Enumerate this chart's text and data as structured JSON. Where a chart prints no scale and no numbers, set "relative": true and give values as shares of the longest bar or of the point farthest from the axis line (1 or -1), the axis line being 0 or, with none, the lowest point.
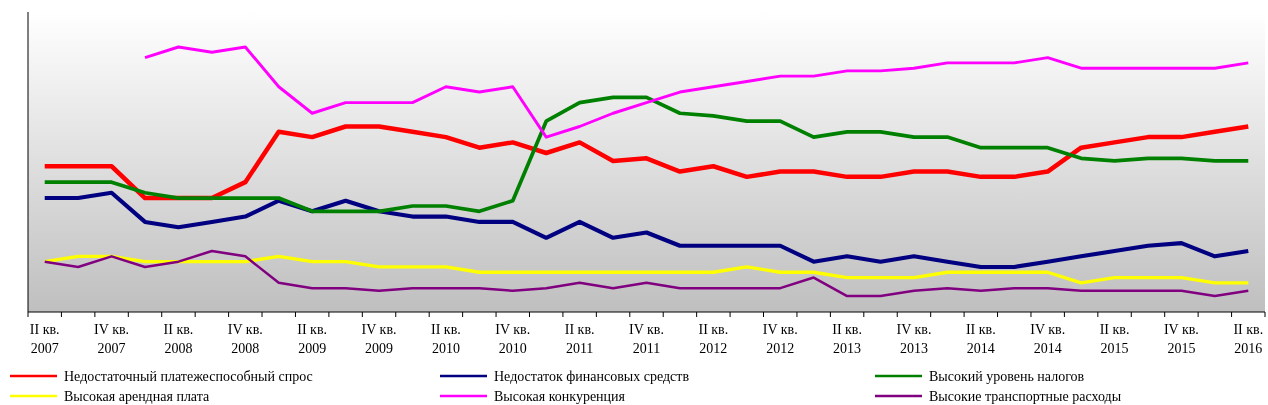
{
  "chart_data": {
    "type": "line",
    "relative": true,
    "legend": "bottom",
    "line_style": "solid",
    "marker": "none",
    "categories": [
      "II кв.\n2007",
      null,
      "IV кв.\n2007",
      null,
      "II кв.\n2008",
      null,
      "IV кв.\n2008",
      null,
      "II кв.\n2009",
      null,
      "IV кв.\n2009",
      null,
      "II кв.\n2010",
      null,
      "IV кв.\n2010",
      null,
      "II кв.\n2011",
      null,
      "IV кв.\n2011",
      null,
      "II кв.\n2012",
      null,
      "IV кв.\n2012",
      null,
      "II кв.\n2013",
      null,
      "IV кв.\n2013",
      null,
      "II кв.\n2014",
      null,
      "IV кв.\n2014",
      null,
      "II кв.\n2015",
      null,
      "IV кв.\n2015",
      null,
      "II кв.\n2016"
    ],
    "series": [
      {
        "name": "Недостаточный платежеспособный спрос",
        "color": "#ff0000",
        "values": [
          0.55,
          0.55,
          0.55,
          0.43,
          0.43,
          0.43,
          0.49,
          0.68,
          0.66,
          0.7,
          0.7,
          0.68,
          0.66,
          0.62,
          0.64,
          0.6,
          0.64,
          0.57,
          0.58,
          0.53,
          0.55,
          0.51,
          0.53,
          0.53,
          0.51,
          0.51,
          0.53,
          0.53,
          0.51,
          0.51,
          0.53,
          0.62,
          0.64,
          0.66,
          0.66,
          0.68,
          0.7
        ]
      },
      {
        "name": "Недостаток финансовых средств",
        "color": "#000080",
        "values": [
          0.43,
          0.43,
          0.45,
          0.34,
          0.32,
          0.34,
          0.36,
          0.42,
          0.38,
          0.42,
          0.38,
          0.36,
          0.36,
          0.34,
          0.34,
          0.28,
          0.34,
          0.28,
          0.3,
          0.25,
          0.25,
          0.25,
          0.25,
          0.19,
          0.21,
          0.19,
          0.21,
          0.19,
          0.17,
          0.17,
          0.19,
          0.21,
          0.23,
          0.25,
          0.26,
          0.21,
          0.23
        ]
      },
      {
        "name": "Высокий уровень налогов",
        "color": "#008000",
        "values": [
          0.49,
          0.49,
          0.49,
          0.45,
          0.43,
          0.43,
          0.43,
          0.43,
          0.38,
          0.38,
          0.38,
          0.4,
          0.4,
          0.38,
          0.42,
          0.72,
          0.79,
          0.81,
          0.81,
          0.75,
          0.74,
          0.72,
          0.72,
          0.66,
          0.68,
          0.68,
          0.66,
          0.66,
          0.62,
          0.62,
          0.62,
          0.58,
          0.57,
          0.58,
          0.58,
          0.57,
          0.57
        ]
      },
      {
        "name": "Высокая арендная плата",
        "color": "#ffff00",
        "values": [
          0.19,
          0.21,
          0.21,
          0.19,
          0.19,
          0.19,
          0.19,
          0.21,
          0.19,
          0.19,
          0.17,
          0.17,
          0.17,
          0.15,
          0.15,
          0.15,
          0.15,
          0.15,
          0.15,
          0.15,
          0.15,
          0.17,
          0.15,
          0.15,
          0.13,
          0.13,
          0.13,
          0.15,
          0.15,
          0.15,
          0.15,
          0.11,
          0.13,
          0.13,
          0.13,
          0.11,
          0.11
        ]
      },
      {
        "name": "Высокая конкуренция",
        "color": "#ff00ff",
        "values": [
          null,
          null,
          null,
          0.96,
          1.0,
          0.98,
          1.0,
          0.85,
          0.75,
          0.79,
          0.79,
          0.79,
          0.85,
          0.83,
          0.85,
          0.66,
          0.7,
          0.75,
          0.79,
          0.83,
          0.85,
          0.87,
          0.89,
          0.89,
          0.91,
          0.91,
          0.92,
          0.94,
          0.94,
          0.94,
          0.96,
          0.92,
          0.92,
          0.92,
          0.92,
          0.92,
          0.94
        ]
      },
      {
        "name": "Высокие транспортные расходы",
        "color": "#800080",
        "values": [
          0.19,
          0.17,
          0.21,
          0.17,
          0.19,
          0.23,
          0.21,
          0.11,
          0.09,
          0.09,
          0.08,
          0.09,
          0.09,
          0.09,
          0.08,
          0.09,
          0.11,
          0.09,
          0.11,
          0.09,
          0.09,
          0.09,
          0.09,
          0.13,
          0.06,
          0.06,
          0.08,
          0.09,
          0.08,
          0.09,
          0.09,
          0.08,
          0.08,
          0.08,
          0.08,
          0.06,
          0.08
        ]
      }
    ]
  }
}
